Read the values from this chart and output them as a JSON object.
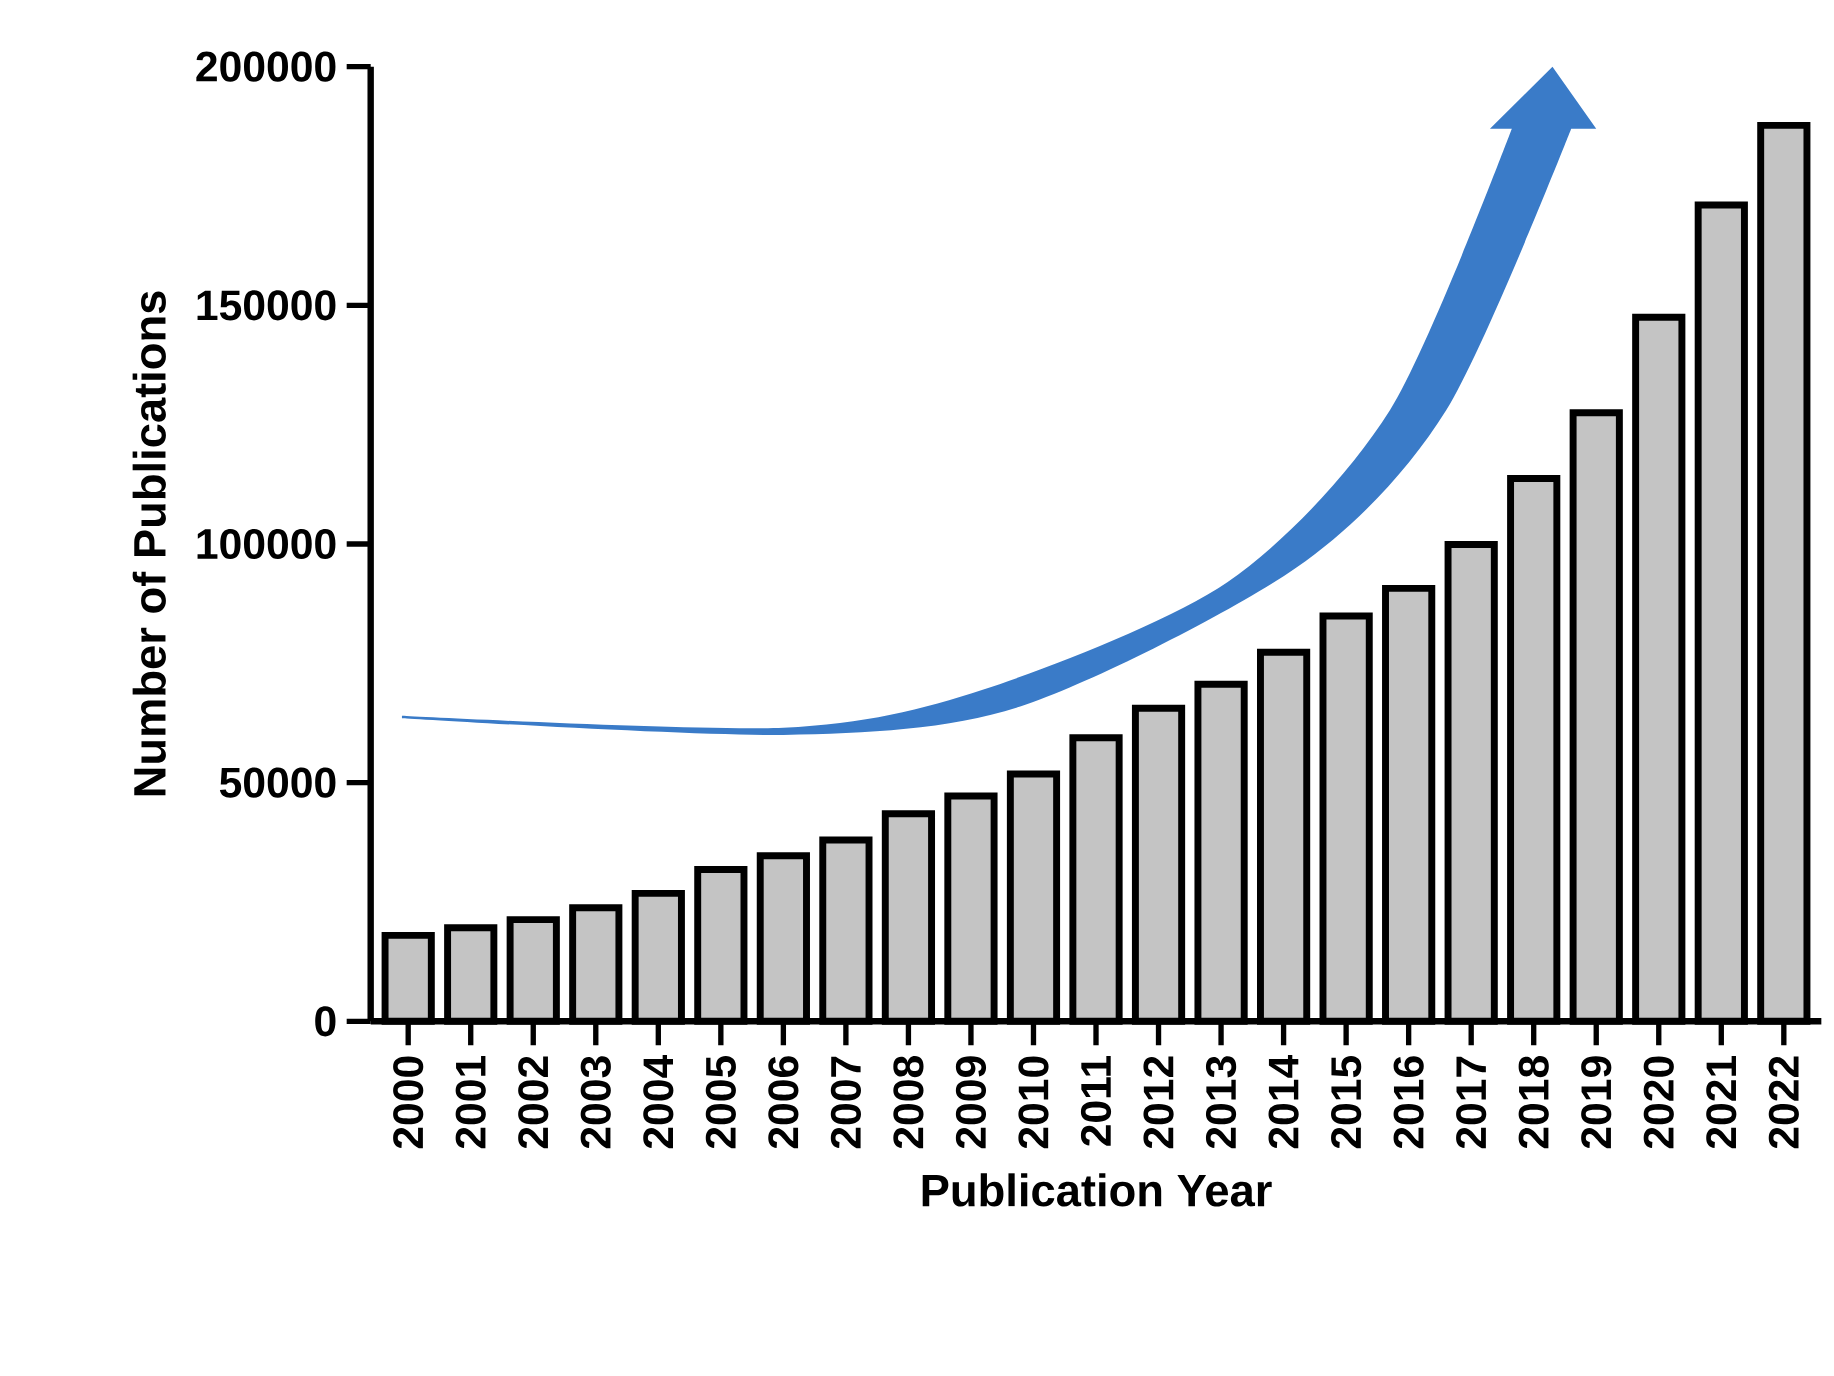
{
  "chart_data": {
    "type": "bar",
    "xlabel": "Publication Year",
    "ylabel": "Number of Publications",
    "categories": [
      "2000",
      "2001",
      "2002",
      "2003",
      "2004",
      "2005",
      "2006",
      "2007",
      "2008",
      "2009",
      "2010",
      "2011",
      "2012",
      "2013",
      "2014",
      "2015",
      "2016",
      "2017",
      "2018",
      "2019",
      "2020",
      "2021",
      "2022"
    ],
    "values": [
      18000,
      19600,
      21300,
      23800,
      26800,
      31800,
      34700,
      38000,
      43500,
      47200,
      51800,
      59400,
      65600,
      70600,
      77300,
      84900,
      90700,
      99900,
      113700,
      127500,
      147500,
      171000,
      187700
    ],
    "color": "#c4c4c4",
    "ylim": [
      0,
      200000
    ],
    "yticks": [
      0,
      50000,
      100000,
      150000,
      200000
    ]
  }
}
